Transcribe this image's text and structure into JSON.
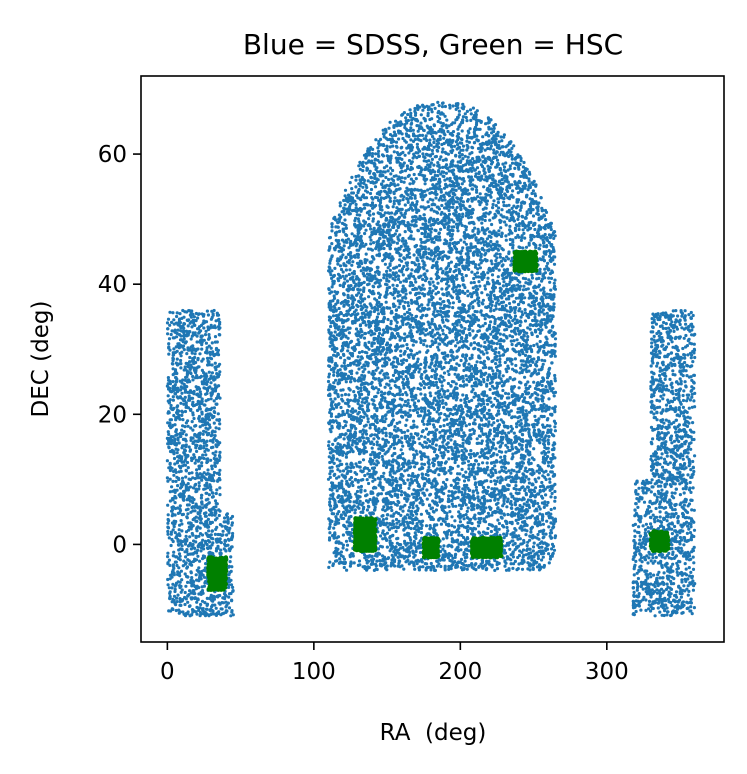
{
  "chart_data": {
    "type": "scatter",
    "title": "Blue = SDSS, Green = HSC",
    "xlabel": "RA  (deg)",
    "ylabel": "DEC (deg)",
    "xlim": [
      -18,
      380
    ],
    "ylim": [
      -15,
      72
    ],
    "xticks": [
      0,
      100,
      200,
      300
    ],
    "yticks": [
      0,
      20,
      40,
      60
    ],
    "grid": false,
    "legend": "none",
    "series": [
      {
        "color": "#1f77b4",
        "regions": [
          {
            "ra": [
              0,
              45
            ],
            "dec": [
              -11,
              36
            ]
          },
          {
            "ra": [
              110,
              265
            ],
            "dec": [
              -4,
              68
            ]
          },
          {
            "ra": [
              318,
              360
            ],
            "dec": [
              -11,
              36
            ]
          }
        ]
      },
      {
        "color": "#008000",
        "fields": [
          {
            "ra": [
              28,
              40
            ],
            "dec": [
              -7,
              -2
            ]
          },
          {
            "ra": [
              128,
              142
            ],
            "dec": [
              -1,
              4
            ]
          },
          {
            "ra": [
              175,
              185
            ],
            "dec": [
              -2,
              1
            ]
          },
          {
            "ra": [
              208,
              228
            ],
            "dec": [
              -2,
              1
            ]
          },
          {
            "ra": [
              237,
              252
            ],
            "dec": [
              42,
              45
            ]
          },
          {
            "ra": [
              330,
              342
            ],
            "dec": [
              -1,
              2
            ]
          }
        ]
      }
    ]
  }
}
